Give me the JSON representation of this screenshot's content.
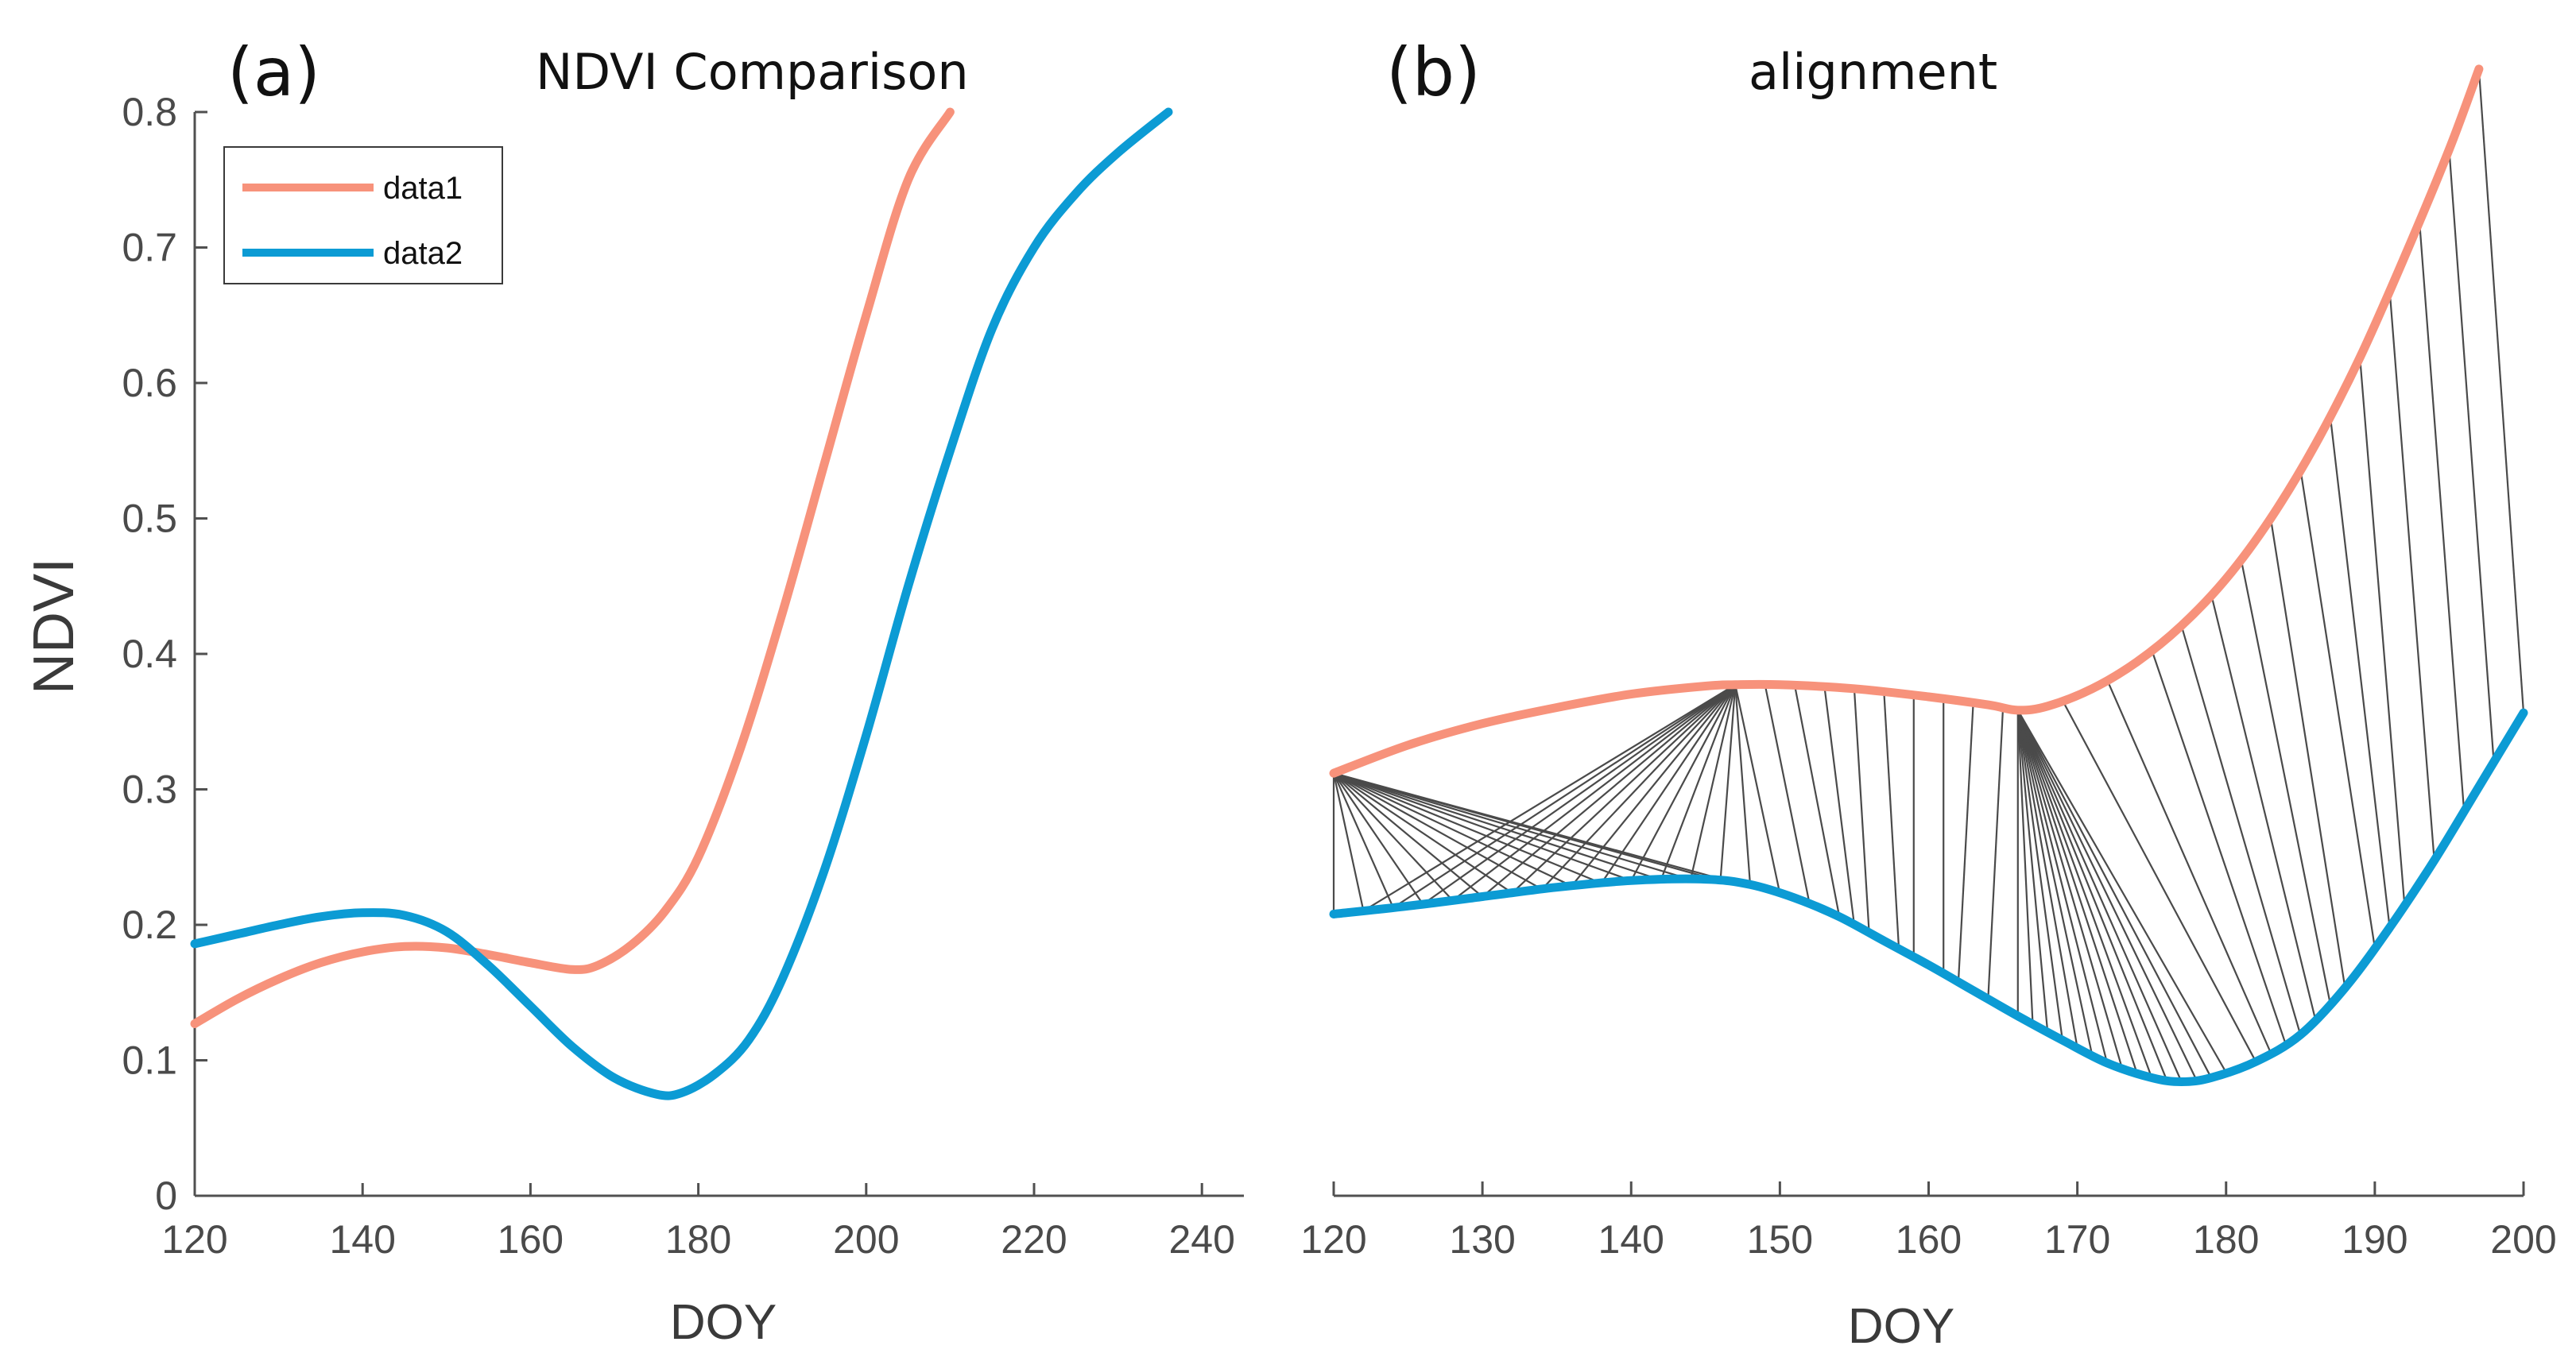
{
  "colors": {
    "data1": "#F7927B",
    "data2": "#0C9BD4",
    "warp": "#4A4A4A",
    "axis": "#505050"
  },
  "chart_data": [
    {
      "type": "line",
      "panel": "(a)",
      "title": "NDVI Comparison",
      "xlabel": "DOY",
      "ylabel": "NDVI",
      "xlim": [
        120,
        245
      ],
      "ylim": [
        0,
        0.8
      ],
      "xticks": [
        "120",
        "140",
        "160",
        "180",
        "200",
        "220",
        "240"
      ],
      "yticks": [
        "0",
        "0.1",
        "0.2",
        "0.3",
        "0.4",
        "0.5",
        "0.6",
        "0.7",
        "0.8"
      ],
      "legend": {
        "position": "top-left",
        "entries": [
          "data1",
          "data2"
        ]
      },
      "series": [
        {
          "name": "data1",
          "x": [
            120,
            125,
            130,
            135,
            140,
            145,
            150,
            155,
            160,
            165,
            168,
            172,
            176,
            180,
            185,
            190,
            195,
            200,
            205,
            210
          ],
          "y": [
            0.127,
            0.145,
            0.16,
            0.172,
            0.18,
            0.184,
            0.183,
            0.178,
            0.172,
            0.167,
            0.17,
            0.185,
            0.21,
            0.25,
            0.33,
            0.43,
            0.54,
            0.65,
            0.75,
            0.8
          ]
        },
        {
          "name": "data2",
          "x": [
            120,
            125,
            130,
            135,
            140,
            145,
            150,
            155,
            160,
            165,
            170,
            175,
            178,
            182,
            186,
            190,
            195,
            200,
            205,
            210,
            215,
            220,
            225,
            230,
            236
          ],
          "y": [
            0.186,
            0.193,
            0.2,
            0.206,
            0.209,
            0.207,
            0.195,
            0.17,
            0.14,
            0.11,
            0.087,
            0.075,
            0.076,
            0.09,
            0.115,
            0.16,
            0.24,
            0.34,
            0.45,
            0.55,
            0.64,
            0.7,
            0.74,
            0.77,
            0.8
          ]
        }
      ]
    },
    {
      "type": "line",
      "panel": "(b)",
      "title": "alignment",
      "xlabel": "DOY",
      "xlim": [
        120,
        200
      ],
      "ylim": [
        0,
        0.85
      ],
      "xticks": [
        "120",
        "130",
        "140",
        "150",
        "160",
        "170",
        "180",
        "190",
        "200"
      ],
      "yticks": [],
      "series": [
        {
          "name": "data1",
          "x": [
            120,
            125,
            130,
            135,
            140,
            145,
            147,
            150,
            155,
            160,
            164,
            166,
            168,
            171,
            174,
            177,
            180,
            183,
            186,
            189,
            192,
            195,
            197
          ],
          "y": [
            0.315,
            0.336,
            0.352,
            0.364,
            0.374,
            0.38,
            0.381,
            0.381,
            0.378,
            0.372,
            0.366,
            0.362,
            0.365,
            0.378,
            0.398,
            0.425,
            0.46,
            0.505,
            0.56,
            0.625,
            0.7,
            0.78,
            0.84
          ]
        },
        {
          "name": "data2",
          "x": [
            120,
            125,
            130,
            135,
            140,
            145,
            148,
            151,
            154,
            157,
            160,
            163,
            166,
            169,
            172,
            175,
            177,
            179,
            182,
            185,
            188,
            191,
            194,
            197,
            200
          ],
          "y": [
            0.21,
            0.216,
            0.223,
            0.23,
            0.235,
            0.236,
            0.232,
            0.222,
            0.208,
            0.19,
            0.172,
            0.153,
            0.134,
            0.116,
            0.099,
            0.088,
            0.085,
            0.088,
            0.1,
            0.12,
            0.155,
            0.2,
            0.25,
            0.305,
            0.36
          ]
        }
      ],
      "alignment_lines": [
        [
          120,
          120
        ],
        [
          120,
          122
        ],
        [
          120,
          124
        ],
        [
          120,
          126
        ],
        [
          120,
          128
        ],
        [
          120,
          130
        ],
        [
          120,
          132
        ],
        [
          120,
          134
        ],
        [
          120,
          136
        ],
        [
          120,
          138
        ],
        [
          120,
          140
        ],
        [
          120,
          142
        ],
        [
          120,
          144
        ],
        [
          120,
          146
        ],
        [
          120,
          147
        ],
        [
          147,
          122
        ],
        [
          147,
          124
        ],
        [
          147,
          126
        ],
        [
          147,
          128
        ],
        [
          147,
          130
        ],
        [
          147,
          132
        ],
        [
          147,
          134
        ],
        [
          147,
          136
        ],
        [
          147,
          138
        ],
        [
          147,
          140
        ],
        [
          147,
          142
        ],
        [
          147,
          144
        ],
        [
          147,
          146
        ],
        [
          147,
          148
        ],
        [
          147,
          150
        ],
        [
          149,
          152
        ],
        [
          151,
          154
        ],
        [
          153,
          155
        ],
        [
          155,
          156
        ],
        [
          157,
          158
        ],
        [
          159,
          159
        ],
        [
          161,
          161
        ],
        [
          163,
          162
        ],
        [
          165,
          164
        ],
        [
          166,
          166
        ],
        [
          166,
          167
        ],
        [
          166,
          168
        ],
        [
          166,
          169
        ],
        [
          166,
          170
        ],
        [
          166,
          171
        ],
        [
          166,
          172
        ],
        [
          166,
          173
        ],
        [
          166,
          174
        ],
        [
          166,
          175
        ],
        [
          166,
          176
        ],
        [
          166,
          177
        ],
        [
          166,
          178
        ],
        [
          166,
          179
        ],
        [
          166,
          180
        ],
        [
          169,
          182
        ],
        [
          172,
          183
        ],
        [
          175,
          184
        ],
        [
          177,
          185
        ],
        [
          179,
          186
        ],
        [
          181,
          187
        ],
        [
          183,
          188
        ],
        [
          185,
          190
        ],
        [
          187,
          191
        ],
        [
          189,
          192
        ],
        [
          191,
          194
        ],
        [
          193,
          196
        ],
        [
          195,
          198
        ],
        [
          197,
          200
        ]
      ]
    }
  ]
}
